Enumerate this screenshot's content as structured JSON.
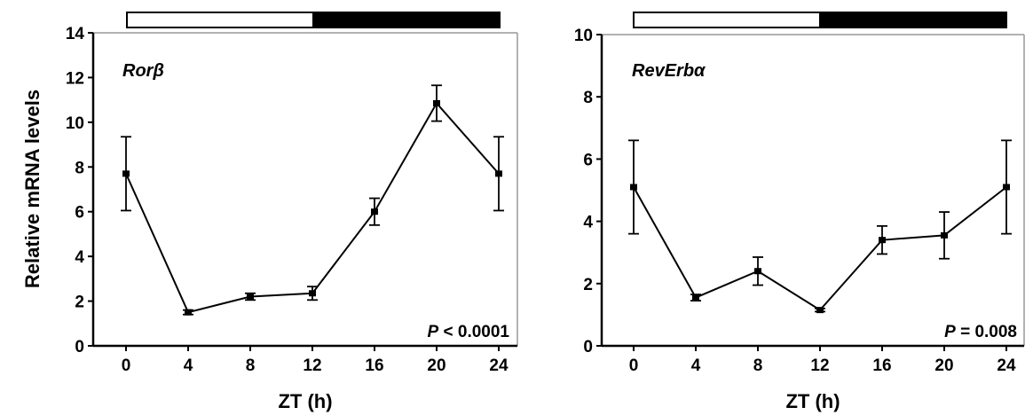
{
  "y_axis_label": "Relative mRNA levels",
  "chart_data": [
    {
      "type": "line",
      "gene_label": "Rorβ",
      "annotation": {
        "italic": "P",
        "rest": " < 0.0001"
      },
      "xlabel": "ZT (h)",
      "ylabel": "Relative mRNA levels",
      "x": [
        0,
        4,
        8,
        12,
        16,
        20,
        24
      ],
      "xticks": [
        "0",
        "4",
        "8",
        "12",
        "16",
        "20",
        "24"
      ],
      "values": [
        7.7,
        1.5,
        2.2,
        2.35,
        6.0,
        10.85,
        7.7
      ],
      "errors": [
        1.65,
        0.1,
        0.15,
        0.3,
        0.6,
        0.8,
        1.65
      ],
      "ylim": [
        0,
        14
      ],
      "yticks": [
        "0",
        "2",
        "4",
        "6",
        "8",
        "10",
        "12",
        "14"
      ],
      "light_dark_bar": {
        "light": [
          0,
          12
        ],
        "dark": [
          12,
          24
        ]
      },
      "grid": false
    },
    {
      "type": "line",
      "gene_label": "RevErbα",
      "annotation": {
        "italic": "P",
        "rest": " = 0.008"
      },
      "xlabel": "ZT (h)",
      "ylabel": "",
      "x": [
        0,
        4,
        8,
        12,
        16,
        20,
        24
      ],
      "xticks": [
        "0",
        "4",
        "8",
        "12",
        "16",
        "20",
        "24"
      ],
      "values": [
        5.1,
        1.55,
        2.4,
        1.15,
        3.4,
        3.55,
        5.1
      ],
      "errors": [
        1.5,
        0.1,
        0.45,
        0.05,
        0.45,
        0.75,
        1.5
      ],
      "ylim": [
        0,
        10
      ],
      "yticks": [
        "0",
        "2",
        "4",
        "6",
        "8",
        "10"
      ],
      "light_dark_bar": {
        "light": [
          0,
          12
        ],
        "dark": [
          12,
          24
        ]
      },
      "grid": false
    }
  ]
}
